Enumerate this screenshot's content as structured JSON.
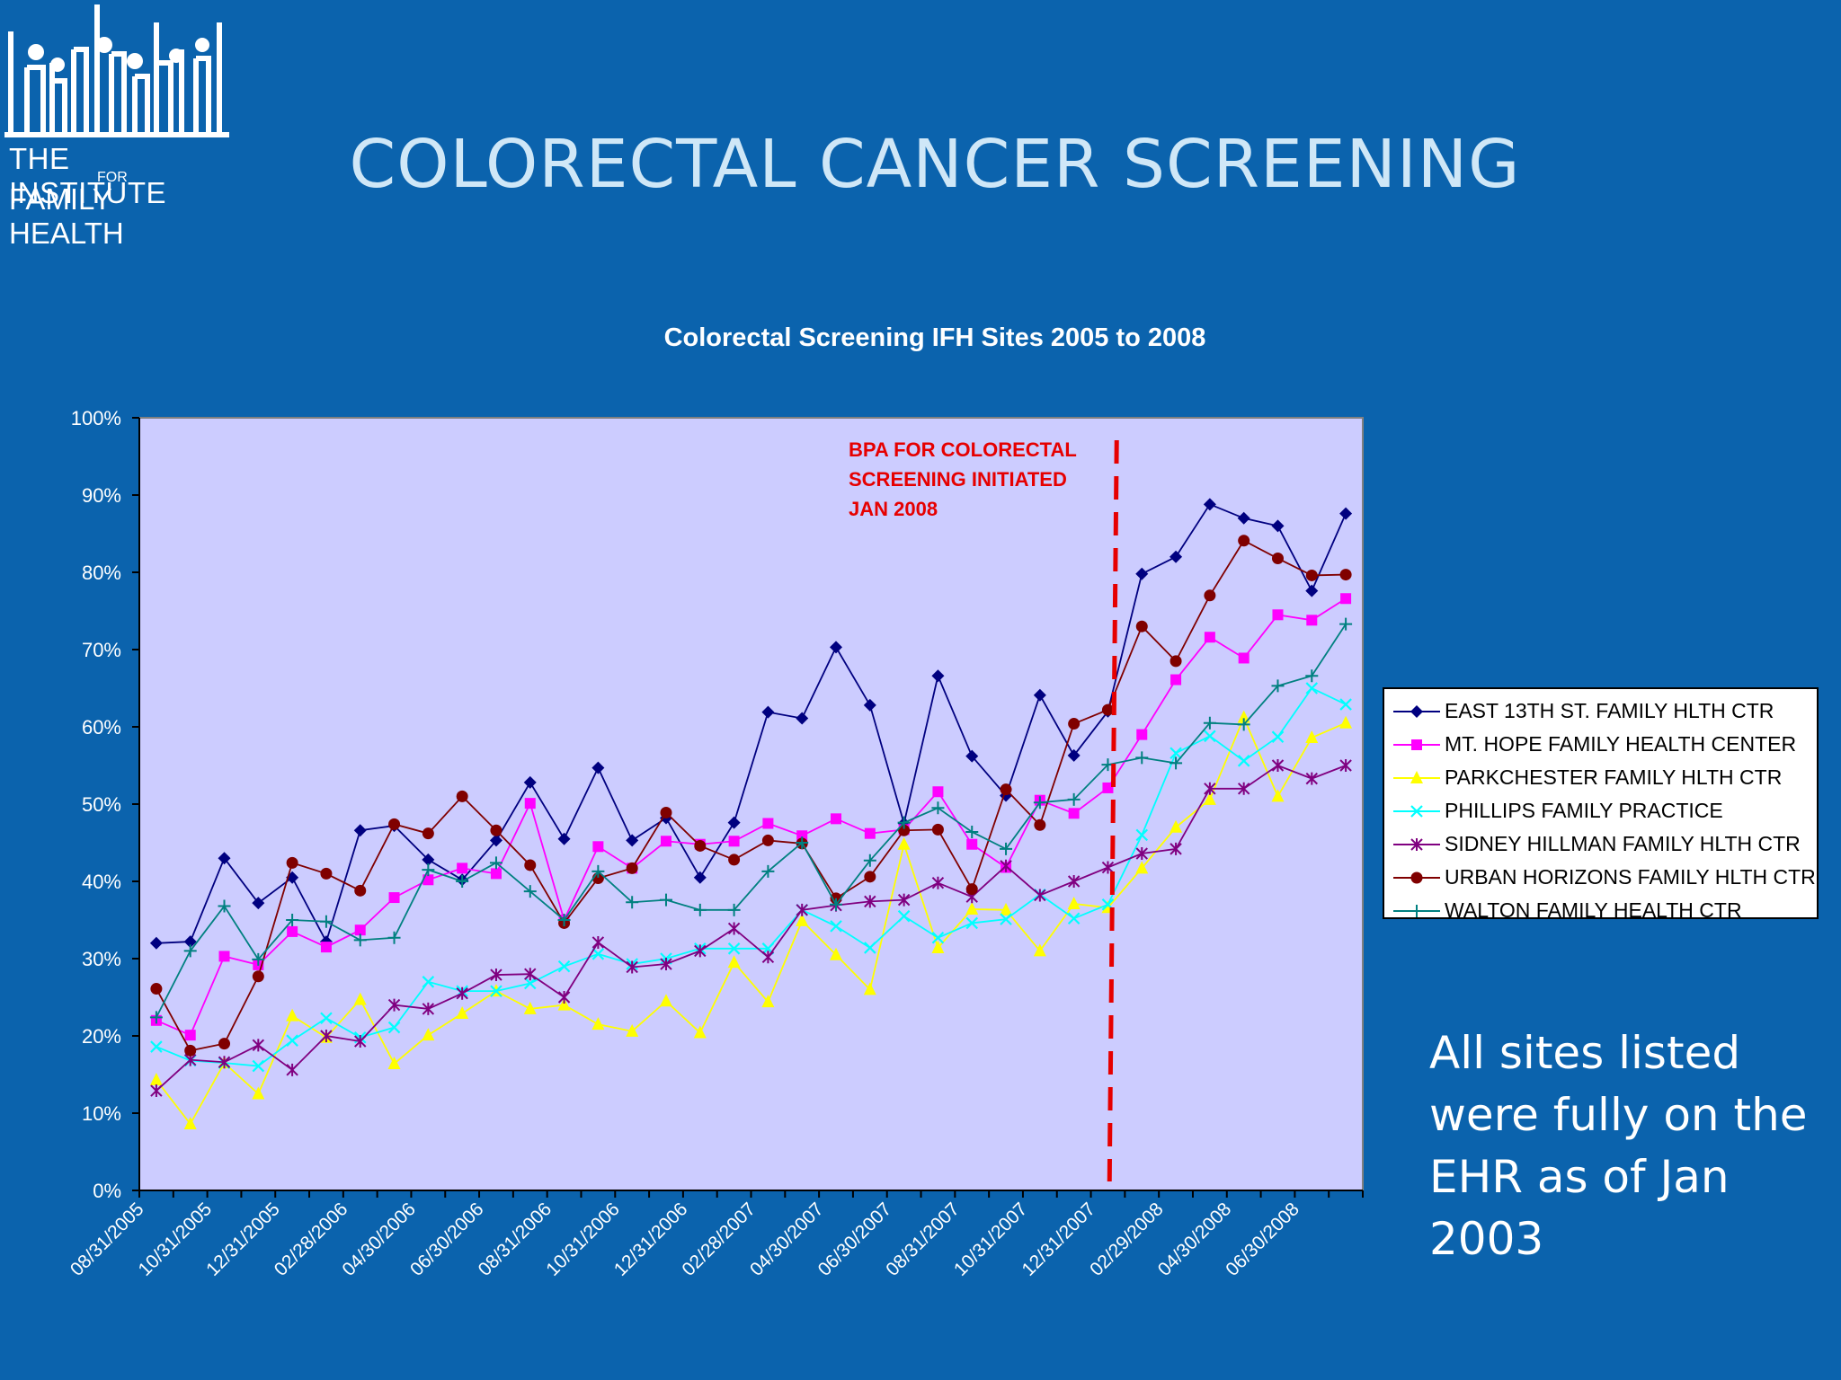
{
  "slide": {
    "title": "COLORECTAL CANCER SCREENING",
    "note": "All sites listed were fully on the EHR as of Jan 2003"
  },
  "logo": {
    "line1": "THE INSTITUTE",
    "line2": "FOR",
    "line3": "FAMILY HEALTH"
  },
  "colors": {
    "background": "#0b63ad",
    "plot_area": "#ccccff",
    "annotation": "#e60000"
  },
  "chart_data": {
    "type": "line",
    "title": "Colorectal Screening IFH Sites 2005 to 2008",
    "xlabel": "",
    "ylabel": "",
    "ylim": [
      0,
      100
    ],
    "yticks": [
      "0%",
      "10%",
      "20%",
      "30%",
      "40%",
      "50%",
      "60%",
      "70%",
      "80%",
      "90%",
      "100%"
    ],
    "x_tick_labels": [
      "08/31/2005",
      "10/31/2005",
      "12/31/2005",
      "02/28/2006",
      "04/30/2006",
      "06/30/2006",
      "08/31/2006",
      "10/31/2006",
      "12/31/2006",
      "02/28/2007",
      "04/30/2007",
      "06/30/2007",
      "08/31/2007",
      "10/31/2007",
      "12/31/2007",
      "02/29/2008",
      "04/30/2008",
      "06/30/2008"
    ],
    "grid": false,
    "legend_position": "right",
    "annotation": {
      "lines": [
        "BPA FOR COLORECTAL",
        "SCREENING INITIATED",
        "JAN 2008"
      ],
      "x_index": 28.1
    },
    "series": [
      {
        "name": "EAST 13TH ST. FAMILY HLTH CTR",
        "color": "#000080",
        "marker": "diamond",
        "values": [
          32,
          32.2,
          43,
          37.2,
          40.5,
          32.2,
          46.6,
          47.2,
          42.8,
          40.2,
          45.3,
          52.8,
          45.5,
          54.7,
          45.3,
          48.2,
          40.5,
          47.6,
          61.9,
          61.1,
          70.3,
          62.8,
          47.5,
          66.6,
          56.2,
          51.1,
          64.1,
          56.3,
          62,
          79.8,
          82,
          88.8,
          87,
          86,
          77.6,
          87.6
        ]
      },
      {
        "name": "MT. HOPE FAMILY HEALTH CENTER",
        "color": "#ff00ff",
        "marker": "square",
        "values": [
          22,
          20.1,
          30.3,
          29.2,
          33.5,
          31.5,
          33.7,
          37.9,
          40.2,
          41.7,
          41,
          50.1,
          35,
          44.5,
          41.7,
          45.2,
          44.8,
          45.2,
          47.5,
          45.9,
          48.1,
          46.2,
          46.7,
          51.6,
          44.8,
          41.8,
          50.5,
          48.8,
          52.1,
          59,
          66.1,
          71.6,
          68.9,
          74.5,
          73.8,
          76.6
        ]
      },
      {
        "name": "PARKCHESTER FAMILY HLTH CTR",
        "color": "#ffff00",
        "marker": "triangle",
        "values": [
          14.3,
          8.6,
          16.5,
          12.5,
          22.6,
          19.8,
          24.7,
          16.4,
          20.1,
          22.9,
          25.8,
          23.5,
          24,
          21.5,
          20.6,
          24.5,
          20.4,
          29.5,
          24.4,
          34.9,
          30.5,
          26,
          44.8,
          31.4,
          36.4,
          36.3,
          31,
          37.1,
          36.6,
          41.7,
          47,
          50.6,
          61.2,
          51,
          58.6,
          60.5
        ]
      },
      {
        "name": "PHILLIPS FAMILY PRACTICE",
        "color": "#00ffff",
        "marker": "x",
        "values": [
          18.6,
          16.8,
          16.5,
          16.1,
          19.4,
          22.3,
          19.8,
          21.1,
          27,
          25.8,
          25.8,
          26.8,
          29,
          30.6,
          29.3,
          30,
          31.3,
          31.3,
          31.3,
          36.3,
          34.2,
          31.4,
          35.5,
          32.7,
          34.6,
          35.1,
          38.3,
          35.2,
          37,
          46,
          56.6,
          58.8,
          55.6,
          58.7,
          65,
          62.9
        ]
      },
      {
        "name": "SIDNEY HILLMAN FAMILY HLTH CTR",
        "color": "#800080",
        "marker": "star",
        "values": [
          12.9,
          16.9,
          16.6,
          18.8,
          15.6,
          20,
          19.3,
          24,
          23.5,
          25.5,
          27.9,
          28,
          25,
          32.1,
          28.9,
          29.3,
          31,
          33.9,
          30.2,
          36.3,
          36.9,
          37.4,
          37.6,
          39.8,
          38,
          42,
          38.2,
          40,
          41.8,
          43.6,
          44.2,
          52,
          52,
          55,
          53.3,
          55
        ]
      },
      {
        "name": "URBAN HORIZONS FAMILY HLTH CTR",
        "color": "#800000",
        "marker": "circle",
        "values": [
          26.1,
          18.1,
          19,
          27.7,
          42.4,
          41,
          38.8,
          47.4,
          46.2,
          51,
          46.6,
          42.1,
          34.6,
          40.4,
          41.7,
          48.9,
          44.6,
          42.8,
          45.3,
          44.9,
          37.8,
          40.6,
          46.6,
          46.7,
          39,
          51.9,
          47.3,
          60.4,
          62.2,
          73,
          68.5,
          77,
          84.1,
          81.8,
          79.6,
          79.7
        ]
      },
      {
        "name": "WALTON FAMILY HEALTH CTR",
        "color": "#008080",
        "marker": "plus",
        "values": [
          22.4,
          31,
          36.8,
          29.9,
          35,
          34.8,
          32.4,
          32.7,
          41.5,
          40,
          42.4,
          38.7,
          35,
          41.3,
          37.3,
          37.6,
          36.3,
          36.3,
          41.3,
          45,
          37,
          42.7,
          47.6,
          49.5,
          46.4,
          44.2,
          50.2,
          50.6,
          55.1,
          56,
          55.3,
          60.5,
          60.3,
          65.3,
          66.6,
          73.3
        ]
      }
    ]
  }
}
